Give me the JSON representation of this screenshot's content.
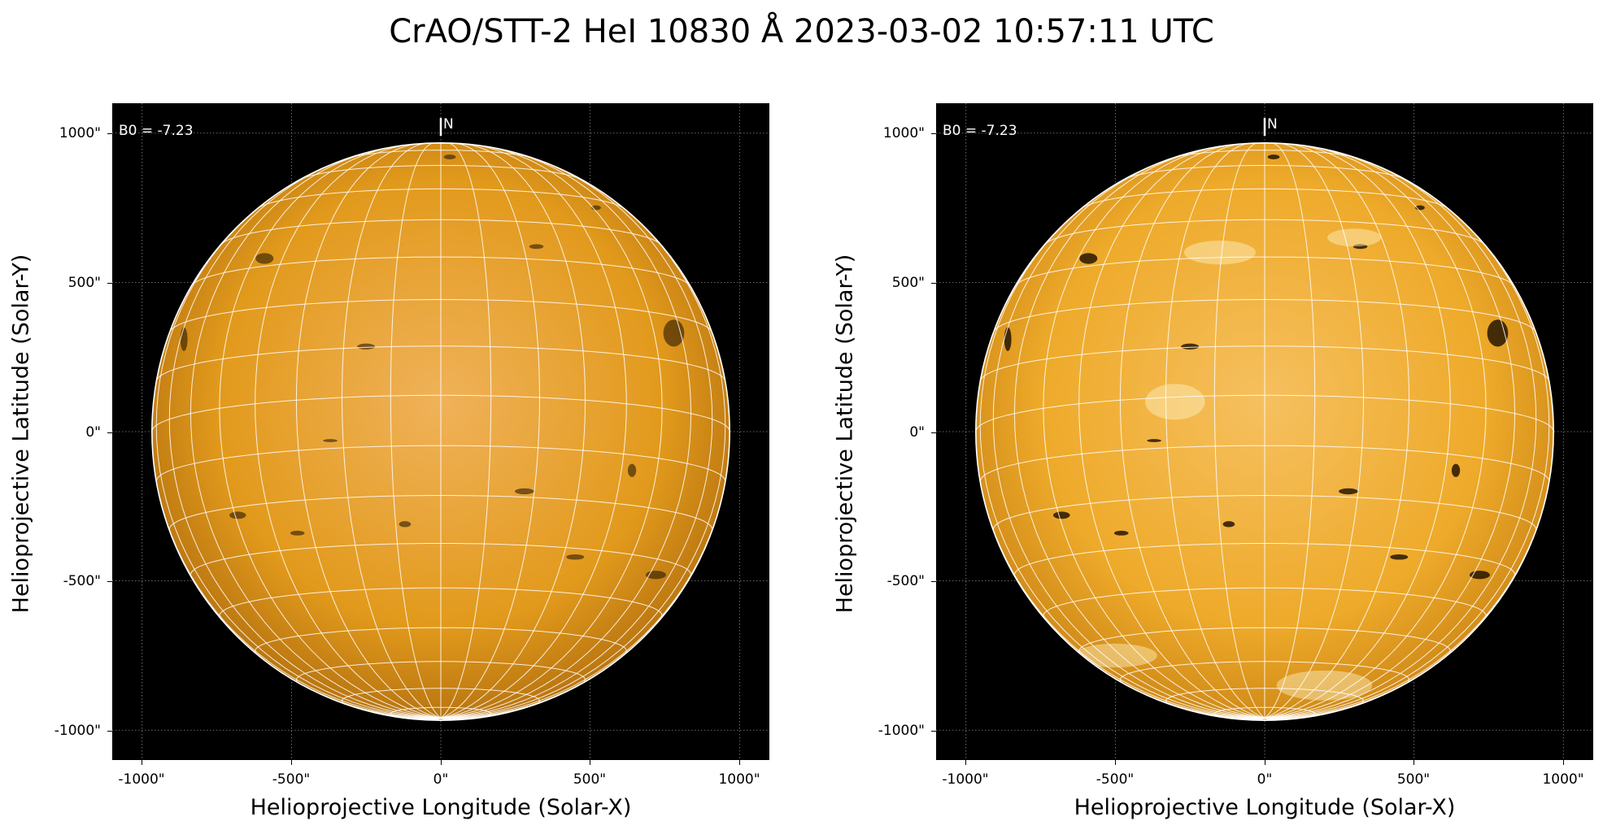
{
  "title": "CrAO/STT-2 HeI 10830 Å 2023-03-02 10:57:11 UTC",
  "panels": [
    {
      "annotation": "B0 = -7.23",
      "north_marker": "N",
      "xlabel": "Helioprojective Longitude (Solar-X)",
      "ylabel": "Helioprojective Latitude (Solar-Y)",
      "x_ticks": [
        "-1000\"",
        "-500\"",
        "0\"",
        "500\"",
        "1000\""
      ],
      "y_ticks": [
        "1000\"",
        "500\"",
        "0\"",
        "-500\"",
        "-1000\""
      ],
      "x_range_arcsec": [
        -1100,
        1100
      ],
      "y_range_arcsec": [
        -1100,
        1100
      ],
      "disk_color": "#e29a1c",
      "grid": "on"
    },
    {
      "annotation": "B0 = -7.23",
      "north_marker": "N",
      "xlabel": "Helioprojective Longitude (Solar-X)",
      "ylabel": "Helioprojective Latitude (Solar-Y)",
      "x_ticks": [
        "-1000\"",
        "-500\"",
        "0\"",
        "500\"",
        "1000\""
      ],
      "y_ticks": [
        "1000\"",
        "500\"",
        "0\"",
        "-500\"",
        "-1000\""
      ],
      "x_range_arcsec": [
        -1100,
        1100
      ],
      "y_range_arcsec": [
        -1100,
        1100
      ],
      "disk_color": "#eeaa2a",
      "grid": "on"
    }
  ],
  "colors": {
    "background": "#000000",
    "grid": "#ffffff",
    "limb": "#ffffff"
  },
  "solar_radius_arcsec": 967
}
